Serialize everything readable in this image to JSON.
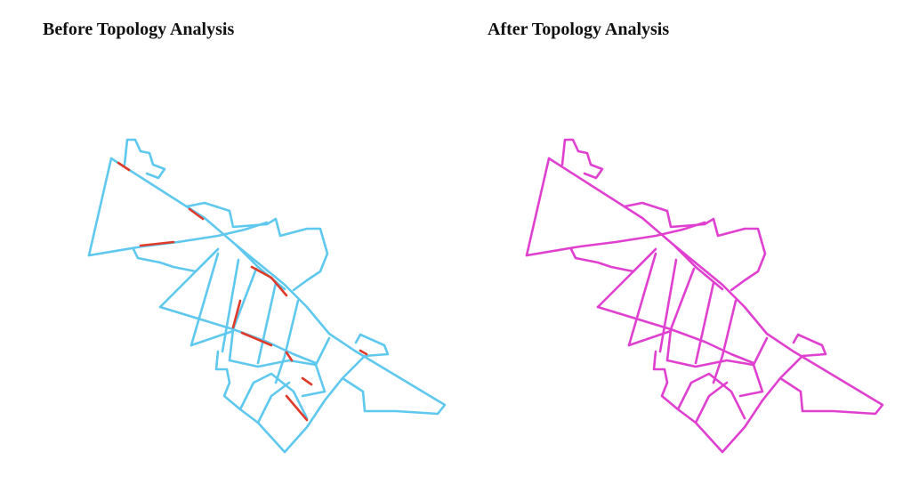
{
  "panels": [
    {
      "title": "Before Topology Analysis"
    },
    {
      "title": "After Topology Analysis"
    }
  ]
}
